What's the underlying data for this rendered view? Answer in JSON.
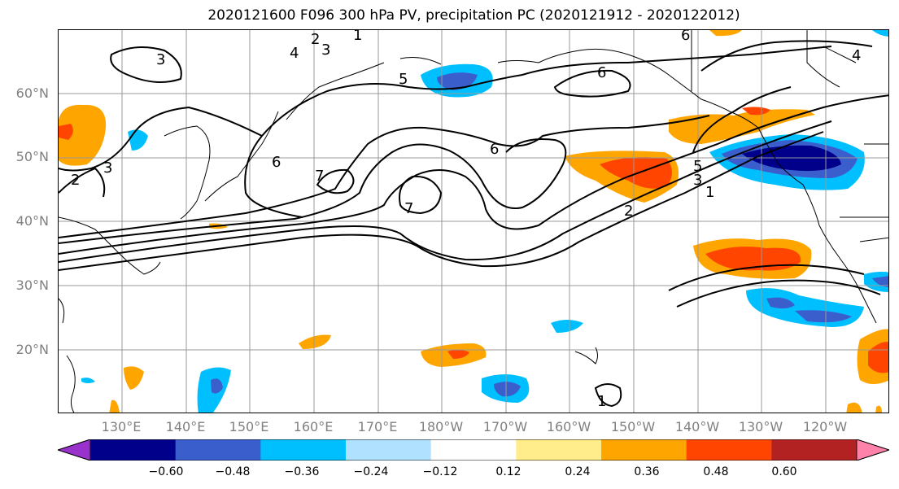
{
  "title": "2020121600 F096 300 hPa PV, precipitation PC (2020121912 - 2020122012)",
  "lat_labels": [
    "60°N",
    "50°N",
    "40°N",
    "30°N",
    "20°N"
  ],
  "lon_labels": [
    "130°E",
    "140°E",
    "150°E",
    "160°E",
    "170°E",
    "180°W",
    "170°W",
    "160°W",
    "150°W",
    "140°W",
    "130°W",
    "120°W"
  ],
  "colorbar": {
    "ticks": [
      "−0.60",
      "−0.48",
      "−0.36",
      "−0.24",
      "−0.12",
      "0.12",
      "0.24",
      "0.36",
      "0.48",
      "0.60"
    ],
    "colors": [
      "#9932CC",
      "#00008B",
      "#3A5FCD",
      "#00BFFF",
      "#B0E2FF",
      "#FFFFFF",
      "#FFEC8B",
      "#FFA500",
      "#FF4500",
      "#B22222",
      "#FF82AB"
    ]
  },
  "contour_labels": [
    "1",
    "2",
    "3",
    "4",
    "5",
    "6",
    "7"
  ]
}
